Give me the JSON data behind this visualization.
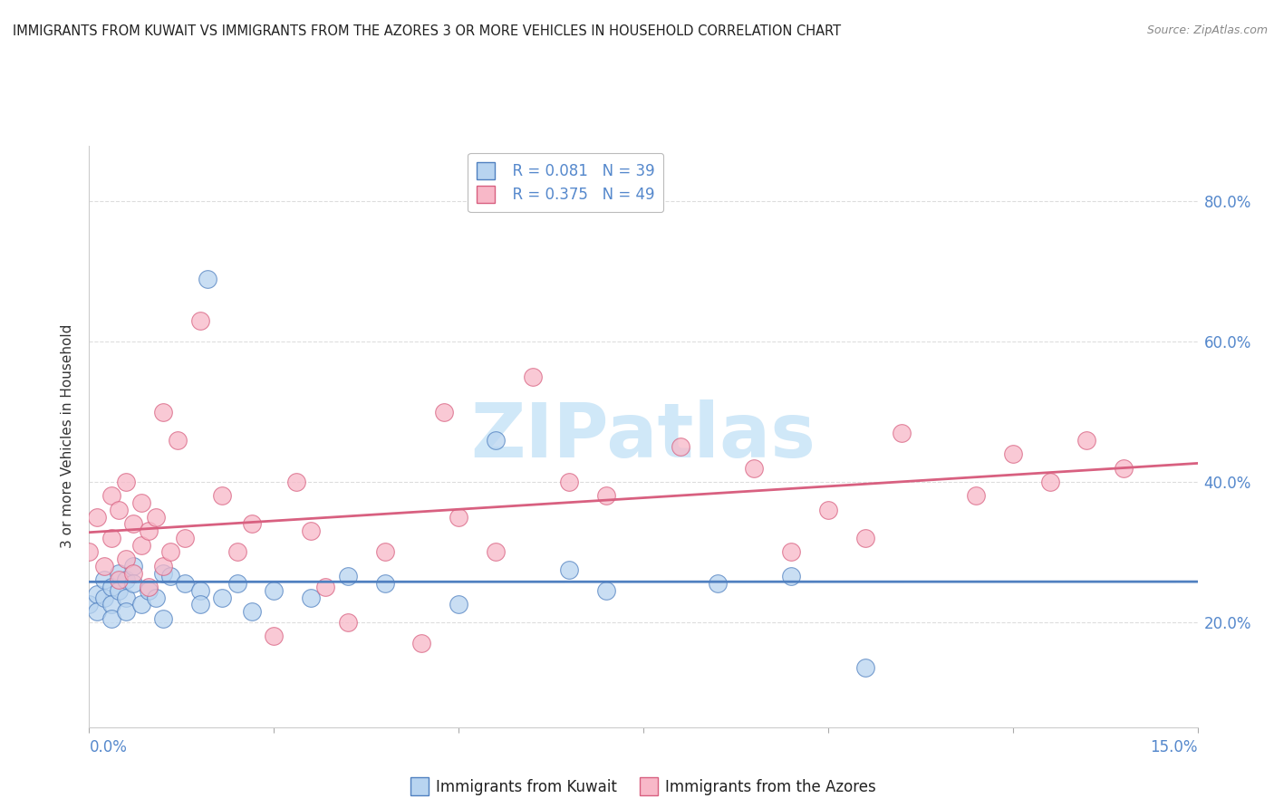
{
  "title": "IMMIGRANTS FROM KUWAIT VS IMMIGRANTS FROM THE AZORES 3 OR MORE VEHICLES IN HOUSEHOLD CORRELATION CHART",
  "source": "Source: ZipAtlas.com",
  "ylabel": "3 or more Vehicles in Household",
  "y_ticks": [
    0.2,
    0.4,
    0.6,
    0.8
  ],
  "y_tick_labels": [
    "20.0%",
    "40.0%",
    "60.0%",
    "80.0%"
  ],
  "x_range": [
    0.0,
    0.15
  ],
  "y_range": [
    0.05,
    0.88
  ],
  "legend_r1": "R = 0.081",
  "legend_n1": "N = 39",
  "legend_r2": "R = 0.375",
  "legend_n2": "N = 49",
  "color_kuwait": "#b8d4f0",
  "color_azores": "#f8b8c8",
  "color_kuwait_line": "#5080c0",
  "color_azores_line": "#d86080",
  "watermark_color": "#d0e8f8",
  "kuwait_points_x": [
    0.0,
    0.001,
    0.001,
    0.002,
    0.002,
    0.003,
    0.003,
    0.003,
    0.004,
    0.004,
    0.005,
    0.005,
    0.005,
    0.006,
    0.006,
    0.007,
    0.008,
    0.009,
    0.01,
    0.01,
    0.011,
    0.013,
    0.015,
    0.015,
    0.016,
    0.018,
    0.02,
    0.022,
    0.025,
    0.03,
    0.035,
    0.04,
    0.05,
    0.055,
    0.065,
    0.07,
    0.085,
    0.095,
    0.105
  ],
  "kuwait_points_y": [
    0.225,
    0.24,
    0.215,
    0.26,
    0.235,
    0.25,
    0.225,
    0.205,
    0.27,
    0.245,
    0.26,
    0.235,
    0.215,
    0.28,
    0.255,
    0.225,
    0.245,
    0.235,
    0.27,
    0.205,
    0.265,
    0.255,
    0.245,
    0.225,
    0.69,
    0.235,
    0.255,
    0.215,
    0.245,
    0.235,
    0.265,
    0.255,
    0.225,
    0.46,
    0.275,
    0.245,
    0.255,
    0.265,
    0.135
  ],
  "azores_points_x": [
    0.0,
    0.001,
    0.002,
    0.003,
    0.003,
    0.004,
    0.004,
    0.005,
    0.005,
    0.006,
    0.006,
    0.007,
    0.007,
    0.008,
    0.008,
    0.009,
    0.01,
    0.01,
    0.011,
    0.012,
    0.013,
    0.015,
    0.018,
    0.02,
    0.022,
    0.025,
    0.028,
    0.03,
    0.032,
    0.035,
    0.04,
    0.045,
    0.048,
    0.05,
    0.055,
    0.06,
    0.065,
    0.07,
    0.08,
    0.09,
    0.095,
    0.1,
    0.105,
    0.11,
    0.12,
    0.125,
    0.13,
    0.135,
    0.14
  ],
  "azores_points_y": [
    0.3,
    0.35,
    0.28,
    0.38,
    0.32,
    0.36,
    0.26,
    0.4,
    0.29,
    0.34,
    0.27,
    0.37,
    0.31,
    0.33,
    0.25,
    0.35,
    0.5,
    0.28,
    0.3,
    0.46,
    0.32,
    0.63,
    0.38,
    0.3,
    0.34,
    0.18,
    0.4,
    0.33,
    0.25,
    0.2,
    0.3,
    0.17,
    0.5,
    0.35,
    0.3,
    0.55,
    0.4,
    0.38,
    0.45,
    0.42,
    0.3,
    0.36,
    0.32,
    0.47,
    0.38,
    0.44,
    0.4,
    0.46,
    0.42
  ]
}
